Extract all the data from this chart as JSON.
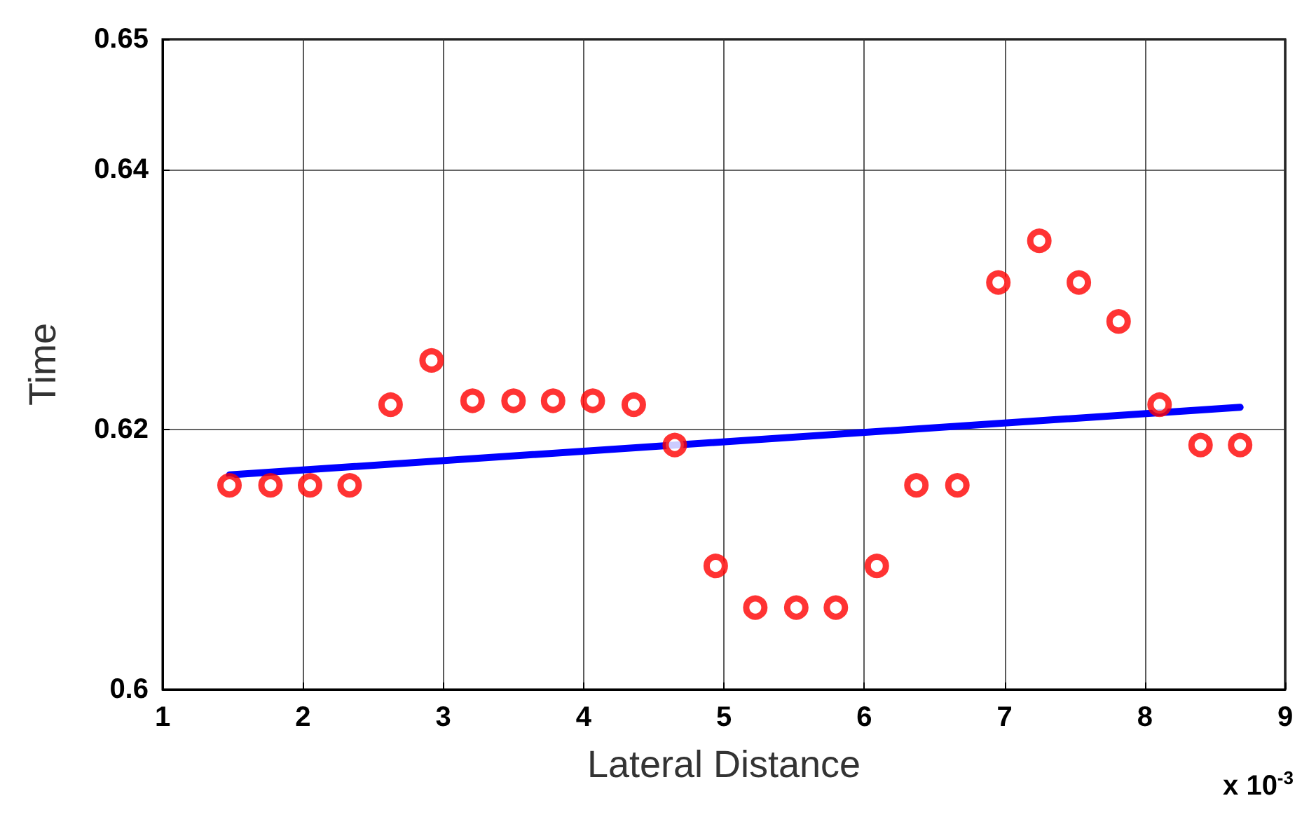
{
  "chart_data": {
    "type": "scatter",
    "xlabel": "Lateral Distance",
    "ylabel": "Time",
    "annotations": [
      "x 10$^{-3}$"
    ],
    "xlim": [
      1,
      9
    ],
    "xticks": [
      1,
      2,
      3,
      4,
      5,
      6,
      7,
      8,
      9
    ],
    "ylim": [
      0.6,
      0.65
    ],
    "yticks": [
      0.6,
      0.62,
      0.64,
      0.65
    ],
    "grid": true,
    "series": [
      {
        "marker": "circle",
        "color": "#ff0000",
        "x": [
          1.477,
          1.769,
          2.051,
          2.333,
          2.625,
          2.917,
          3.209,
          3.501,
          3.783,
          4.066,
          4.358,
          4.65,
          4.942,
          5.224,
          5.516,
          5.798,
          6.09,
          6.372,
          6.664,
          6.956,
          7.248,
          7.53,
          7.813,
          8.105,
          8.397,
          8.679
        ],
        "values": [
          0.6157,
          0.6157,
          0.6157,
          0.6157,
          0.6219,
          0.6253,
          0.6222,
          0.6222,
          0.6222,
          0.6222,
          0.6219,
          0.6188,
          0.6095,
          0.6063,
          0.6063,
          0.6063,
          0.6095,
          0.6157,
          0.6157,
          0.6313,
          0.6345,
          0.6313,
          0.6283,
          0.6219,
          0.6188,
          0.6188
        ]
      },
      {
        "type": "line",
        "marker": "none",
        "color": "#0000ff",
        "line_style": "solid",
        "x": [
          1.477,
          8.679
        ],
        "values": [
          0.6165,
          0.6217
        ]
      }
    ]
  }
}
